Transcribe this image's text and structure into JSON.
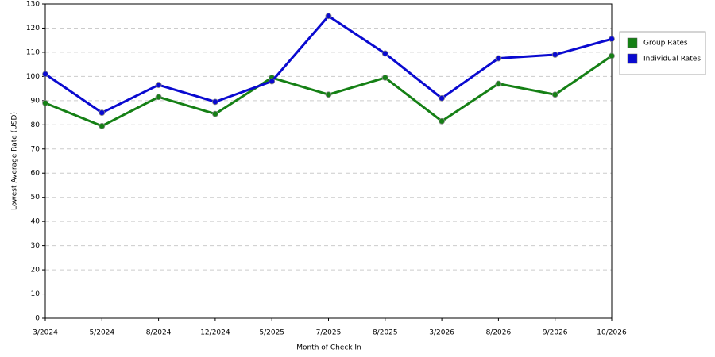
{
  "chart_data": {
    "type": "line",
    "x_label": "Month of Check In",
    "y_label": "Lowest Average Rate (USD)",
    "categories": [
      "3/2024",
      "5/2024",
      "8/2024",
      "12/2024",
      "5/2025",
      "7/2025",
      "8/2025",
      "3/2026",
      "8/2026",
      "9/2026",
      "10/2026"
    ],
    "series": [
      {
        "name": "Group Rates",
        "color": "#158015",
        "values": [
          89,
          79.5,
          91.5,
          84.5,
          99.5,
          92.5,
          99.5,
          81.5,
          97,
          92.5,
          108.5
        ]
      },
      {
        "name": "Individual Rates",
        "color": "#0a0ad0",
        "values": [
          101,
          85,
          96.5,
          89.5,
          98,
          125,
          109.5,
          91,
          107.5,
          109,
          115.5
        ]
      }
    ],
    "ylim": [
      0,
      130
    ],
    "yticks": [
      0,
      10,
      20,
      30,
      40,
      50,
      60,
      70,
      80,
      90,
      100,
      110,
      120,
      130
    ],
    "grid": true,
    "legend": "right"
  }
}
